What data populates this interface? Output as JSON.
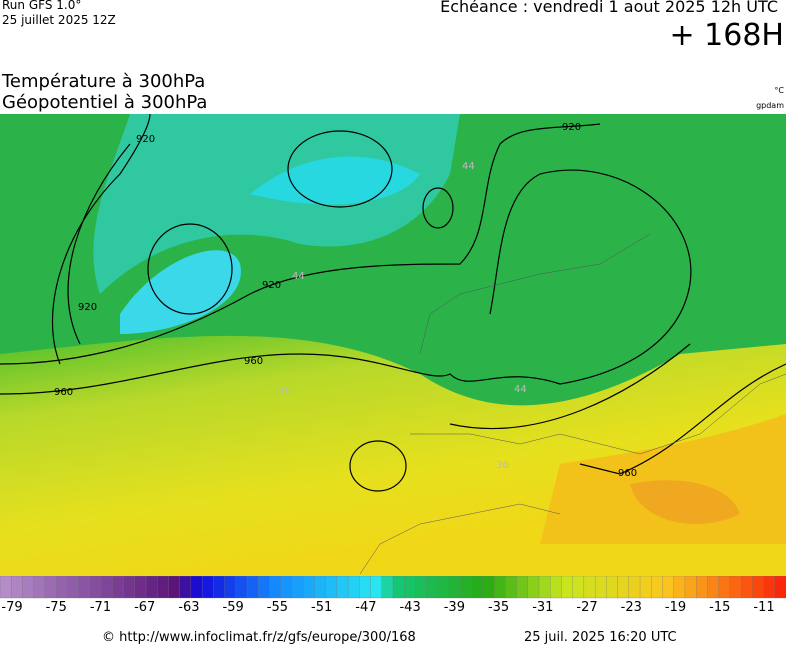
{
  "header": {
    "run": "Run GFS 1.0°",
    "run_date": "25 juillet 2025 12Z",
    "valid": "Echéance : vendredi 1 aout 2025 12h UTC",
    "lead": "+ 168H",
    "title1": "Température à 300hPa",
    "title2": "Géopotentiel à 300hPa",
    "unit_temp": "°C",
    "unit_geo": "gpdam"
  },
  "map": {
    "contour_labels": [
      "920",
      "920",
      "920",
      "920",
      "960",
      "960",
      "960",
      "44",
      "44",
      "44",
      "36",
      "36"
    ]
  },
  "legend": {
    "labels": [
      "-79",
      "-75",
      "-71",
      "-67",
      "-63",
      "-59",
      "-55",
      "-51",
      "-47",
      "-43",
      "-39",
      "-35",
      "-31",
      "-27",
      "-23",
      "-19",
      "-15",
      "-11"
    ]
  },
  "footer": {
    "url": "© http://www.infoclimat.fr/z/gfs/europe/300/168",
    "generated": "25 juil. 2025 16:20 UTC"
  }
}
